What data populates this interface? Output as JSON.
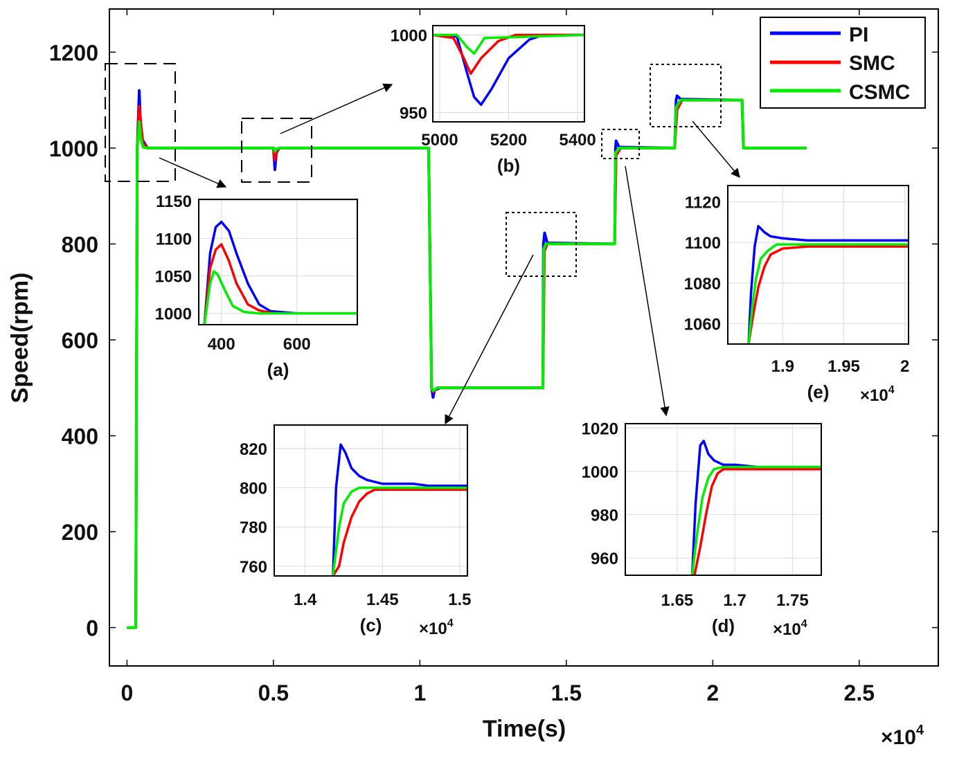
{
  "chart_data": {
    "type": "line",
    "xlabel": "Time(s)",
    "ylabel": "Speed(rpm)",
    "x_multiplier": "×10",
    "x_exponent": "4",
    "xlim": [
      -0.06,
      2.77
    ],
    "ylim": [
      -80,
      1290
    ],
    "xticks": [
      0,
      0.5,
      1,
      1.5,
      2,
      2.5
    ],
    "xtick_labels": [
      "0",
      "0.5",
      "1",
      "1.5",
      "2",
      "2.5"
    ],
    "yticks": [
      0,
      200,
      400,
      600,
      800,
      1000,
      1200
    ],
    "ytick_labels": [
      "0",
      "200",
      "400",
      "600",
      "800",
      "1000",
      "1200"
    ],
    "grid": false,
    "legend_position": "top-right",
    "colors": {
      "PI": "#0000ff",
      "SMC": "#ff0000",
      "CSMC": "#00ee00"
    },
    "series": [
      {
        "name": "PI",
        "x": [
          0,
          0.03,
          0.035,
          0.042,
          0.045,
          0.05,
          0.07,
          0.5,
          0.505,
          0.51,
          0.52,
          1.03,
          1.04,
          1.045,
          1.05,
          1.07,
          1.42,
          1.422,
          1.426,
          1.435,
          1.665,
          1.668,
          1.67,
          1.68,
          1.87,
          1.875,
          1.878,
          1.89,
          2.1,
          2.105,
          2.12,
          2.32
        ],
        "y": [
          0,
          0,
          1000,
          1120,
          1070,
          1020,
          1000,
          1000,
          955,
          990,
          1000,
          1000,
          500,
          480,
          495,
          500,
          500,
          800,
          823,
          802,
          800,
          1000,
          1015,
          1002,
          1000,
          1100,
          1109,
          1102,
          1100,
          1000,
          1000,
          1000
        ]
      },
      {
        "name": "SMC",
        "x": [
          0,
          0.03,
          0.035,
          0.042,
          0.047,
          0.055,
          0.07,
          0.5,
          0.505,
          0.51,
          0.52,
          1.03,
          1.04,
          1.045,
          1.06,
          1.42,
          1.425,
          1.435,
          1.665,
          1.67,
          1.685,
          1.87,
          1.878,
          1.895,
          2.1,
          2.105,
          2.12,
          2.32
        ],
        "y": [
          0,
          0,
          1000,
          1087,
          1050,
          1010,
          1000,
          1000,
          975,
          992,
          1000,
          1000,
          500,
          492,
          500,
          500,
          785,
          800,
          800,
          985,
          1000,
          1000,
          1080,
          1100,
          1100,
          1000,
          1000,
          1000
        ]
      },
      {
        "name": "CSMC",
        "x": [
          0,
          0.03,
          0.035,
          0.042,
          0.047,
          0.055,
          0.07,
          0.5,
          0.505,
          0.51,
          0.52,
          1.03,
          1.04,
          1.045,
          1.06,
          1.42,
          1.423,
          1.43,
          1.665,
          1.668,
          1.68,
          1.87,
          1.875,
          1.89,
          2.1,
          2.105,
          2.12,
          2.32
        ],
        "y": [
          0,
          0,
          1000,
          1055,
          1020,
          1002,
          1000,
          1000,
          993,
          998,
          1000,
          1000,
          500,
          494,
          500,
          500,
          790,
          800,
          800,
          990,
          1000,
          1000,
          1085,
          1100,
          1100,
          1000,
          1000,
          1000
        ]
      }
    ],
    "insets": [
      {
        "label": "(a)",
        "xlim": [
          340,
          760
        ],
        "ylim": [
          985,
          1152
        ],
        "xticks": [
          400,
          600
        ],
        "xtick_labels": [
          "400",
          "600"
        ],
        "yticks": [
          1000,
          1050,
          1100,
          1150
        ],
        "ytick_labels": [
          "1000",
          "1050",
          "1100",
          "1150"
        ],
        "x_multiplier": "",
        "x_exponent": "",
        "series": [
          {
            "name": "PI",
            "x": [
              355,
              370,
              385,
              400,
              420,
              440,
              470,
              500,
              530,
              600,
              680,
              760
            ],
            "y": [
              985,
              1080,
              1115,
              1122,
              1110,
              1080,
              1040,
              1012,
              1003,
              1000,
              1000,
              1000
            ]
          },
          {
            "name": "SMC",
            "x": [
              355,
              370,
              385,
              400,
              420,
              440,
              470,
              500,
              540,
              600,
              680,
              760
            ],
            "y": [
              985,
              1060,
              1085,
              1092,
              1070,
              1040,
              1012,
              1004,
              1000,
              1000,
              1000,
              1000
            ]
          },
          {
            "name": "CSMC",
            "x": [
              355,
              370,
              380,
              390,
              410,
              430,
              460,
              500,
              600,
              680,
              760
            ],
            "y": [
              985,
              1040,
              1056,
              1052,
              1030,
              1010,
              1002,
              1000,
              1000,
              1000,
              1000
            ]
          }
        ]
      },
      {
        "label": "(b)",
        "xlim": [
          4980,
          5420
        ],
        "ylim": [
          944,
          1006
        ],
        "xticks": [
          5000,
          5200,
          5400
        ],
        "xtick_labels": [
          "5000",
          "5200",
          "5400"
        ],
        "yticks": [
          950,
          1000
        ],
        "ytick_labels": [
          "950",
          "1000"
        ],
        "x_multiplier": "",
        "x_exponent": "",
        "series": [
          {
            "name": "PI",
            "x": [
              4980,
              5050,
              5080,
              5100,
              5120,
              5150,
              5200,
              5260,
              5300,
              5420
            ],
            "y": [
              1000,
              999,
              975,
              960,
              955,
              965,
              985,
              997,
              1000,
              1000
            ]
          },
          {
            "name": "SMC",
            "x": [
              4980,
              5040,
              5070,
              5090,
              5120,
              5170,
              5220,
              5420
            ],
            "y": [
              1000,
              998,
              985,
              975,
              985,
              996,
              1000,
              1000
            ]
          },
          {
            "name": "CSMC",
            "x": [
              4980,
              5050,
              5080,
              5100,
              5130,
              5420
            ],
            "y": [
              1000,
              1000,
              992,
              988,
              998,
              1000
            ]
          }
        ]
      },
      {
        "label": "(c)",
        "xlim": [
          1.38,
          1.505
        ],
        "ylim": [
          755,
          832
        ],
        "xticks": [
          1.4,
          1.45,
          1.5
        ],
        "xtick_labels": [
          "1.4",
          "1.45",
          "1.5"
        ],
        "yticks": [
          760,
          780,
          800,
          820
        ],
        "ytick_labels": [
          "760",
          "780",
          "800",
          "820"
        ],
        "x_multiplier": "×10",
        "x_exponent": "4",
        "series": [
          {
            "name": "PI",
            "x": [
              1.418,
              1.42,
              1.423,
              1.426,
              1.43,
              1.435,
              1.44,
              1.445,
              1.45,
              1.46,
              1.47,
              1.48,
              1.49,
              1.505
            ],
            "y": [
              755,
              800,
              822,
              818,
              810,
              806,
              804,
              803,
              802,
              802,
              802,
              801,
              801,
              801
            ]
          },
          {
            "name": "SMC",
            "x": [
              1.418,
              1.422,
              1.425,
              1.43,
              1.435,
              1.44,
              1.445,
              1.45,
              1.46,
              1.48,
              1.505
            ],
            "y": [
              755,
              760,
              772,
              785,
              793,
              797,
              799,
              799,
              799,
              799,
              799
            ]
          },
          {
            "name": "CSMC",
            "x": [
              1.418,
              1.42,
              1.422,
              1.425,
              1.43,
              1.435,
              1.44,
              1.45,
              1.47,
              1.505
            ],
            "y": [
              755,
              768,
              780,
              792,
              798,
              800,
              800,
              800,
              800,
              800
            ]
          }
        ]
      },
      {
        "label": "(d)",
        "xlim": [
          1.605,
          1.775
        ],
        "ylim": [
          952,
          1022
        ],
        "xticks": [
          1.65,
          1.7,
          1.75
        ],
        "xtick_labels": [
          "1.65",
          "1.7",
          "1.75"
        ],
        "yticks": [
          960,
          980,
          1000,
          1020
        ],
        "ytick_labels": [
          "960",
          "980",
          "1000",
          "1020"
        ],
        "x_multiplier": "×10",
        "x_exponent": "4",
        "series": [
          {
            "name": "PI",
            "x": [
              1.663,
              1.666,
              1.67,
              1.673,
              1.677,
              1.682,
              1.69,
              1.7,
              1.72,
              1.75,
              1.775
            ],
            "y": [
              952,
              985,
              1012,
              1014,
              1008,
              1005,
              1003,
              1003,
              1002,
              1002,
              1002
            ]
          },
          {
            "name": "SMC",
            "x": [
              1.665,
              1.67,
              1.675,
              1.68,
              1.685,
              1.69,
              1.7,
              1.73,
              1.775
            ],
            "y": [
              952,
              965,
              980,
              993,
              999,
              1001,
              1001,
              1001,
              1001
            ]
          },
          {
            "name": "CSMC",
            "x": [
              1.663,
              1.667,
              1.672,
              1.677,
              1.682,
              1.69,
              1.72,
              1.775
            ],
            "y": [
              952,
              970,
              988,
              997,
              1001,
              1002,
              1002,
              1002
            ]
          }
        ]
      },
      {
        "label": "(e)",
        "xlim": [
          1.855,
          2.003
        ],
        "ylim": [
          1050,
          1128
        ],
        "xticks": [
          1.9,
          1.95,
          2
        ],
        "xtick_labels": [
          "1.9",
          "1.95",
          "2"
        ],
        "yticks": [
          1060,
          1080,
          1100,
          1120
        ],
        "ytick_labels": [
          "1060",
          "1080",
          "1100",
          "1120"
        ],
        "x_multiplier": "×10",
        "x_exponent": "4",
        "series": [
          {
            "name": "PI",
            "x": [
              1.872,
              1.874,
              1.877,
              1.88,
              1.885,
              1.89,
              1.9,
              1.92,
              1.95,
              2.003
            ],
            "y": [
              1050,
              1075,
              1098,
              1108,
              1105,
              1103,
              1102,
              1101,
              1101,
              1101
            ]
          },
          {
            "name": "SMC",
            "x": [
              1.872,
              1.876,
              1.88,
              1.885,
              1.89,
              1.9,
              1.92,
              1.95,
              2.003
            ],
            "y": [
              1050,
              1065,
              1078,
              1088,
              1094,
              1097,
              1098,
              1098,
              1098
            ]
          },
          {
            "name": "CSMC",
            "x": [
              1.872,
              1.875,
              1.878,
              1.882,
              1.888,
              1.895,
              1.91,
              1.95,
              2.003
            ],
            "y": [
              1050,
              1068,
              1082,
              1092,
              1096,
              1099,
              1099,
              1099,
              1099
            ]
          }
        ]
      }
    ]
  }
}
